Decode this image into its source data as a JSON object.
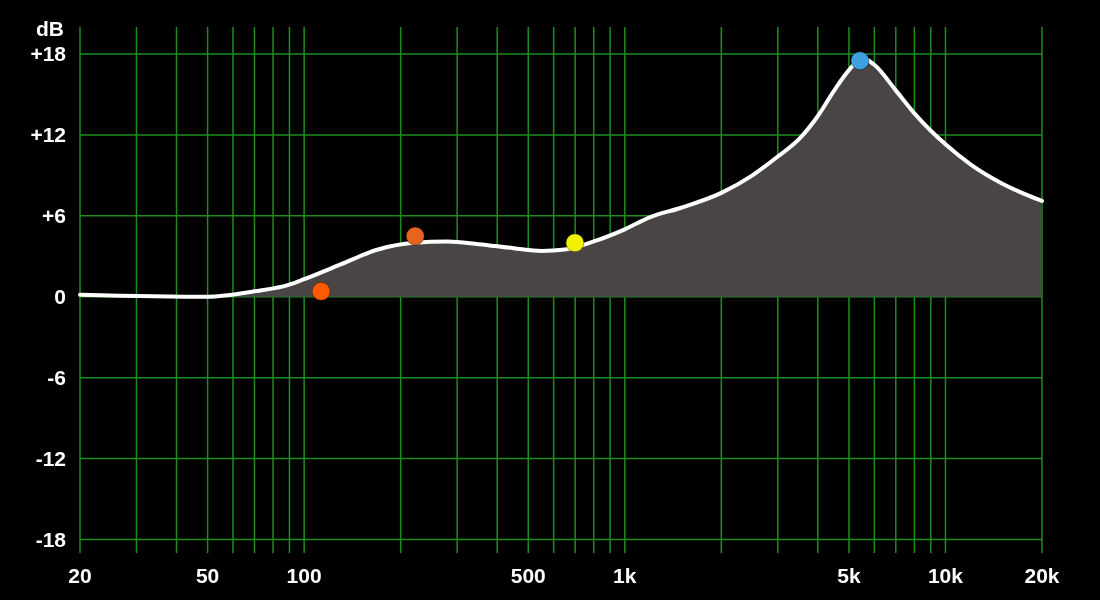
{
  "chart_data": {
    "type": "area",
    "ylabel": "dB",
    "log": "x",
    "grid": true,
    "xlim": [
      20,
      20000
    ],
    "ylim": [
      -19,
      20
    ],
    "xticks": [
      20,
      {
        "value": 30,
        "label": null
      },
      {
        "value": 40,
        "label": null
      },
      50,
      {
        "value": 60,
        "label": null
      },
      {
        "value": 70,
        "label": null
      },
      {
        "value": 80,
        "label": null
      },
      {
        "value": 90,
        "label": null
      },
      100,
      {
        "value": 200,
        "label": null
      },
      {
        "value": 300,
        "label": null
      },
      {
        "value": 400,
        "label": null
      },
      500,
      {
        "value": 600,
        "label": null
      },
      {
        "value": 700,
        "label": null
      },
      {
        "value": 800,
        "label": null
      },
      {
        "value": 900,
        "label": null
      },
      {
        "value": 1000,
        "label": "1k"
      },
      {
        "value": 2000,
        "label": null
      },
      {
        "value": 3000,
        "label": null
      },
      {
        "value": 4000,
        "label": null
      },
      {
        "value": 5000,
        "label": "5k"
      },
      {
        "value": 6000,
        "label": null
      },
      {
        "value": 7000,
        "label": null
      },
      {
        "value": 8000,
        "label": null
      },
      {
        "value": 9000,
        "label": null
      },
      {
        "value": 10000,
        "label": "10k"
      },
      {
        "value": 20000,
        "label": "20k"
      }
    ],
    "yticks": [
      -18,
      -12,
      -6,
      0,
      {
        "value": 6,
        "label": "+6"
      },
      {
        "value": 12,
        "label": "+12"
      },
      {
        "value": 18,
        "label": "+18"
      }
    ],
    "series": [
      {
        "color": "#ffffff",
        "x": [
          20,
          50,
          70,
          90,
          100,
          130,
          170,
          220,
          280,
          350,
          450,
          550,
          650,
          800,
          1000,
          1200,
          1500,
          2000,
          2500,
          3000,
          3500,
          4000,
          4500,
          5000,
          5500,
          6000,
          7000,
          8000,
          10000,
          12000,
          15000,
          20000
        ],
        "values": [
          0.15,
          0,
          0.4,
          0.9,
          1.3,
          2.4,
          3.5,
          4.0,
          4.1,
          3.9,
          3.6,
          3.4,
          3.5,
          4.1,
          5.0,
          5.9,
          6.6,
          7.7,
          9.0,
          10.4,
          11.7,
          13.4,
          15.3,
          16.8,
          17.7,
          17.2,
          15.3,
          13.6,
          11.3,
          9.8,
          8.4,
          7.1
        ]
      },
      {
        "type": "scatter",
        "color": "#ff5a00",
        "x": [
          113
        ],
        "values": [
          0.4
        ]
      },
      {
        "type": "scatter",
        "color": "#e8641e",
        "x": [
          222
        ],
        "values": [
          4.5
        ]
      },
      {
        "type": "scatter",
        "color": "#f0f000",
        "x": [
          699
        ],
        "values": [
          4.0
        ]
      },
      {
        "type": "scatter",
        "color": "#3fa0e0",
        "x": [
          5410
        ],
        "values": [
          17.5
        ]
      }
    ]
  }
}
